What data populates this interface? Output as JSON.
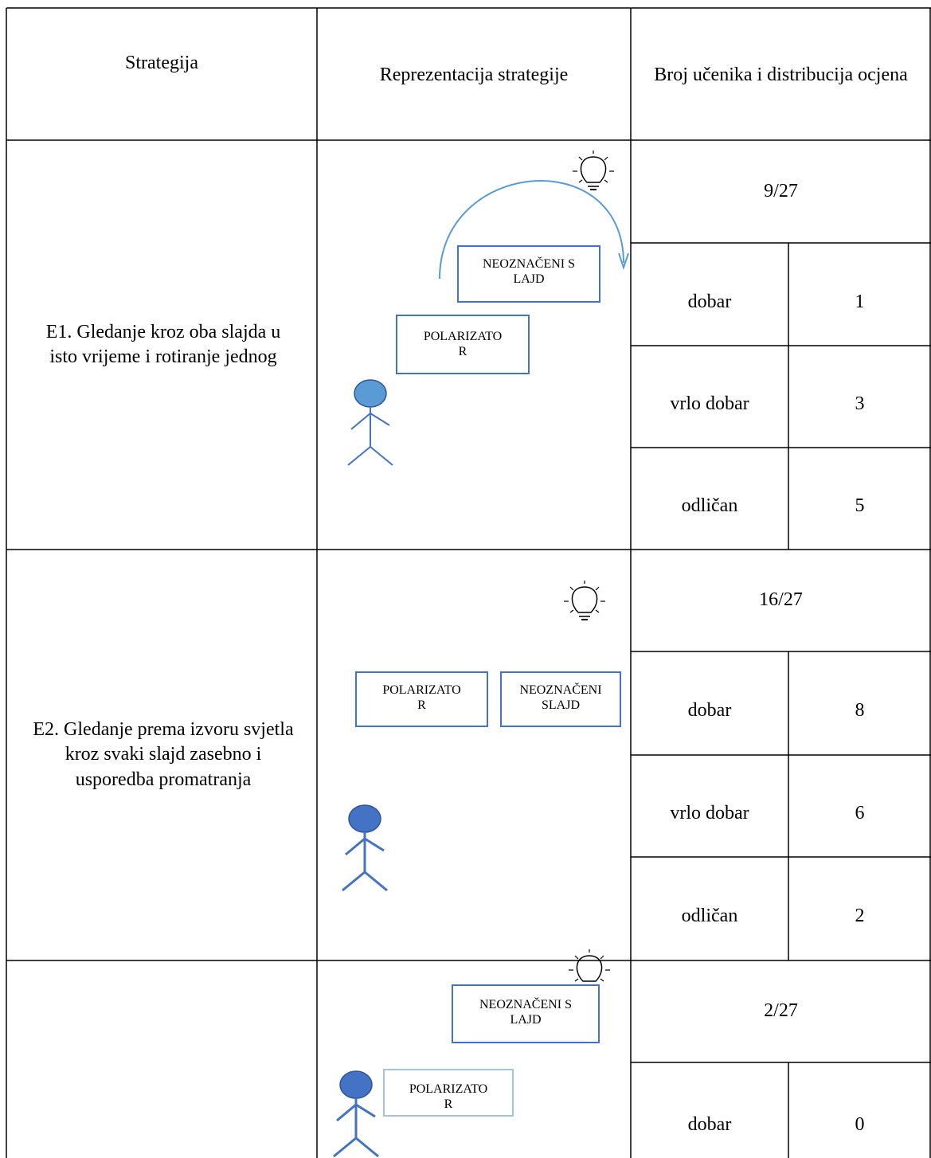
{
  "header": {
    "columns": [
      "Strategija",
      "Reprezentacija strategije",
      "Broj učenika i distribucija ocjena"
    ]
  },
  "rows": [
    {
      "strategy": "E1. Gledanje kroz oba slajda u isto  vrijeme i rotiranje jednog",
      "diagram_labels": [
        "NEOZNAČENI SLAJD",
        "POLARIZATOR"
      ],
      "total": "9/27",
      "grades": [
        {
          "label": "dobar",
          "count": 1
        },
        {
          "label": "vrlo dobar",
          "count": 3
        },
        {
          "label": "odličan",
          "count": 5
        }
      ]
    },
    {
      "strategy": "E2. Gledanje prema izvoru svjetla kroz svaki slajd zasebno i usporedba promatranja",
      "diagram_labels": [
        "POLARIZATOR",
        "NEOZNAČENI SLAJD"
      ],
      "total": "16/27",
      "grades": [
        {
          "label": "dobar",
          "count": 8
        },
        {
          "label": "vrlo dobar",
          "count": 6
        },
        {
          "label": "odličan",
          "count": 2
        }
      ]
    },
    {
      "diagram_labels": [
        "NEOZNAČENI SLAJD",
        "POLARIZATOR"
      ],
      "total": "2/27",
      "grades": [
        {
          "label": "dobar",
          "count": 0
        }
      ]
    }
  ]
}
